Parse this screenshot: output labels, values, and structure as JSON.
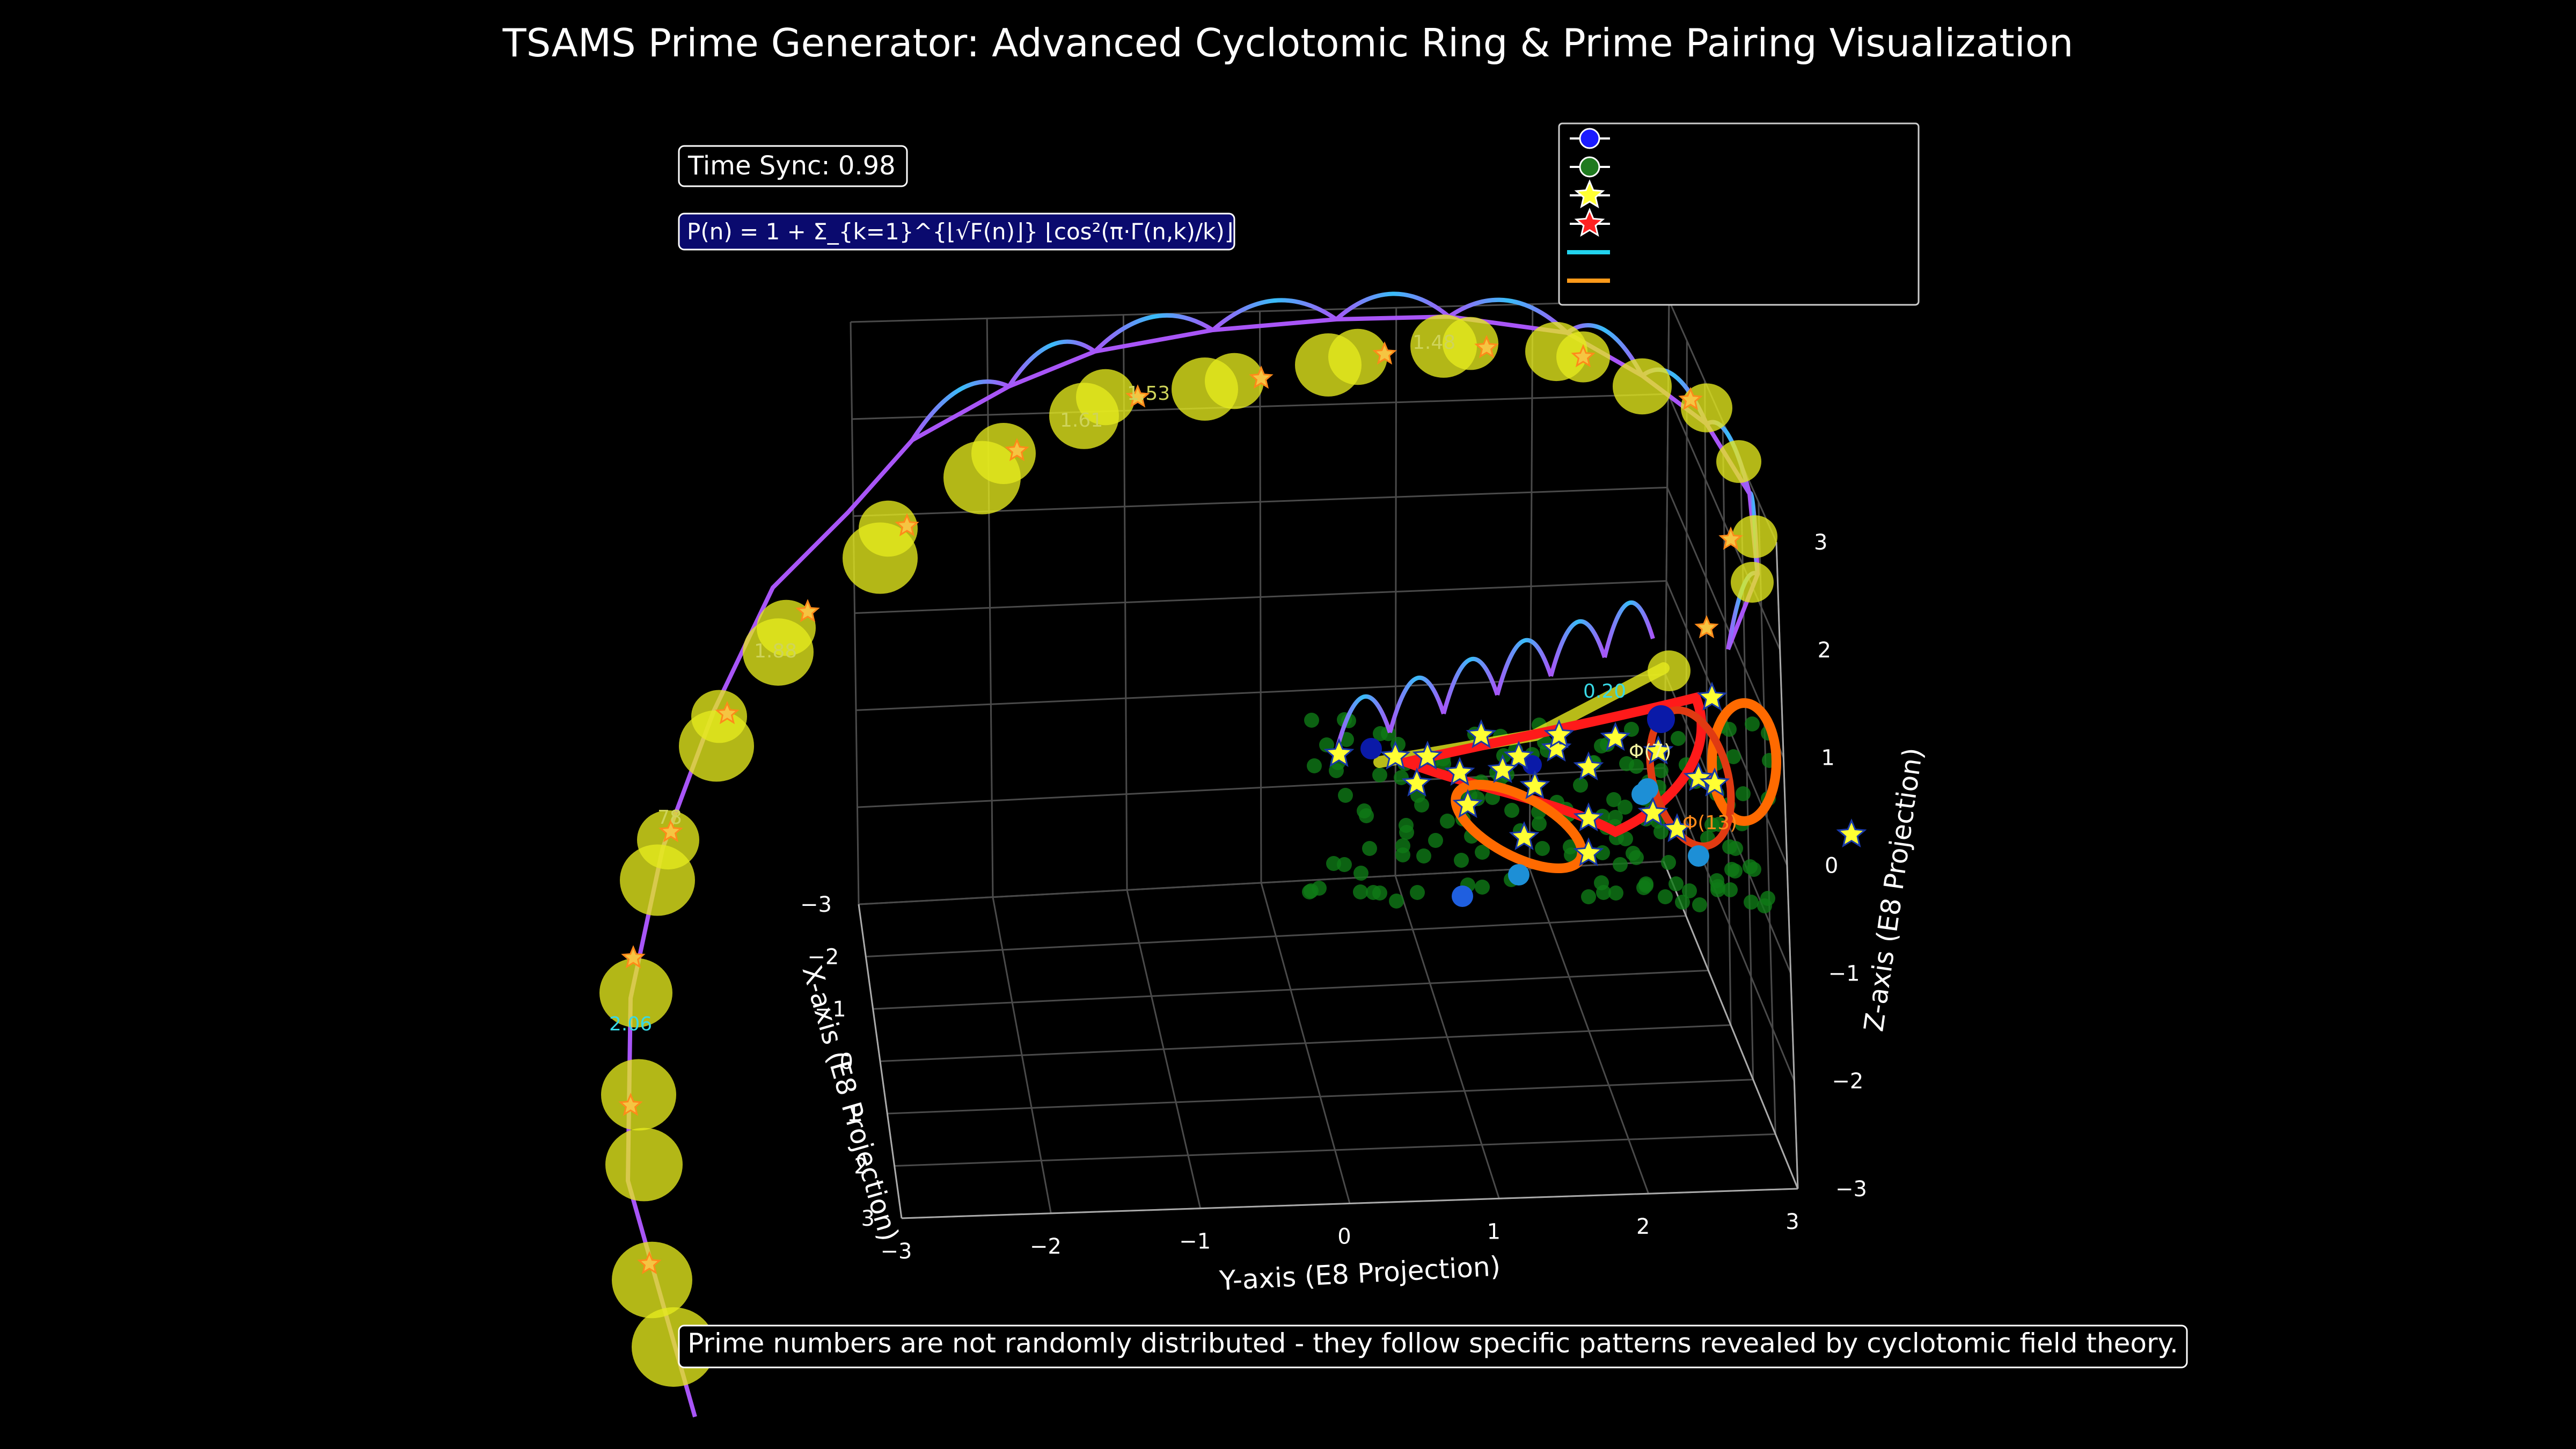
{
  "colors": {
    "background": "#000000",
    "grid": "#4a4a4a",
    "ring_primary": "#e6ea1e",
    "ring_gradient_a": "#a855f7",
    "ring_gradient_b": "#38bdf8",
    "cyclotomic_red": "#ff1a1a",
    "cyclotomic_orange": "#ff6a00",
    "cloud_green": "#0f7a16",
    "node_blue": "#1d8fd6",
    "star_yellow": "#ffff33",
    "legend_cyan": "#22d3ee",
    "legend_orange": "#ff9a1a"
  },
  "chart_data": {
    "type": "scatter3d",
    "title": "TSAMS Prime Generator: Advanced Cyclotomic Ring & Prime Pairing Visualization",
    "xlabel": "X-axis (E8 Projection)",
    "ylabel": "Y-axis (E8 Projection)",
    "zlabel": "Z-axis (E8 Projection)",
    "xlim": [
      -3,
      3
    ],
    "ylim": [
      -3,
      3
    ],
    "zlim": [
      -3,
      3
    ],
    "x_ticks": [
      "−3",
      "−2",
      "−1",
      "0",
      "1",
      "2",
      "3"
    ],
    "y_ticks": [
      "−3",
      "−2",
      "−1",
      "0",
      "1",
      "2",
      "3"
    ],
    "z_ticks": [
      "−3",
      "−2",
      "−1",
      "0",
      "1",
      "2",
      "3"
    ],
    "grid": true,
    "legend": {
      "placement": "top-right",
      "entries": [
        {
          "marker": "circle",
          "color": "#1a1aff",
          "label": ""
        },
        {
          "marker": "circle",
          "color": "#1f7a1f",
          "label": ""
        },
        {
          "marker": "star",
          "color": "#ffff33",
          "label": ""
        },
        {
          "marker": "star",
          "color": "#ff2222",
          "label": ""
        },
        {
          "marker": "line",
          "color": "#22d3ee",
          "label": ""
        },
        {
          "marker": "line",
          "color": "#ff9a1a",
          "label": ""
        }
      ]
    },
    "annotations": {
      "time_sync": "Time Sync: 0.98",
      "formula": "P(n) = 1 + Σ_{k=1}^{⌊√F(n)⌋} ⌊cos²(π·Γ(n,k)/k)⌋",
      "footer": "Prime numbers are not randomly distributed - they follow specific patterns revealed by cyclotomic field theory.",
      "ring_labels": [
        "1.48",
        "1.53",
        "1.61",
        "1.88",
        "78",
        "2.06",
        "0.20"
      ],
      "cyclotomic_labels": [
        "Φ(13)",
        "Φ(7)"
      ]
    }
  }
}
